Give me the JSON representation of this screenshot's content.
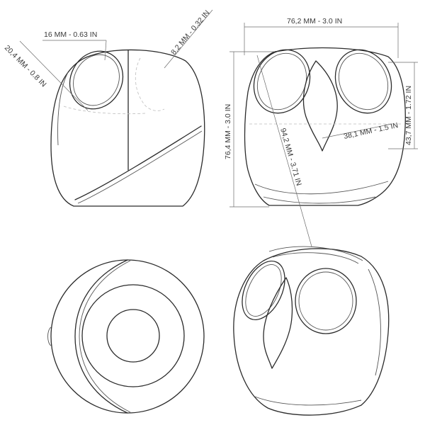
{
  "dimensions": {
    "side_eye_opening": "16 MM - 0.63 IN",
    "side_eye_diameter": "20,4 MM - 0.8 IN",
    "side_wall": "8,2 MM - 0.32 IN",
    "front_width": "76,2 MM - 3.0 IN",
    "front_height": "76,4 MM - 3.0 IN",
    "front_diagonal": "94,2 MM - 3.71 IN",
    "front_eye_offset": "38,1 MM - 1.5 IN",
    "front_eye_height": "43,7 MM - 1.72 IN"
  },
  "views": [
    "side",
    "front",
    "top",
    "isometric"
  ],
  "colors": {
    "stroke": "#2b2b2b",
    "dimension": "#6b6b6b",
    "text": "#3a3a3a"
  }
}
